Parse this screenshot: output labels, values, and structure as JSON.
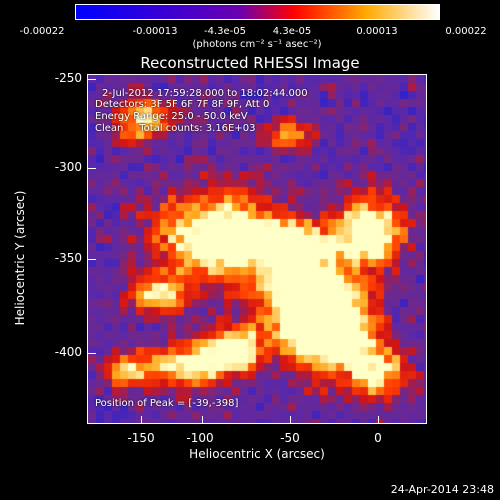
{
  "colorbar": {
    "ticks": [
      "-0.00022",
      "-0.00013",
      "-4.3e-05",
      "4.3e-05",
      "0.00013",
      "0.00022"
    ],
    "units": "(photons cm⁻² s⁻¹ asec⁻²)"
  },
  "title": "Reconstructed RHESSI Image",
  "info": {
    "line1": "2-Jul-2012 17:59:28.000 to 18:02:44.000",
    "line2": "Detectors: 3F 5F 6F 7F 8F 9F, Att 0",
    "line3": "Energy Range: 25.0 - 50.0 keV",
    "line4": "Clean     Total counts: 3.16E+03"
  },
  "peak": "Position of Peak = [-39,-398]",
  "axes": {
    "xlabel": "Heliocentric X (arcsec)",
    "ylabel": "Heliocentric Y (arcsec)",
    "xticks": [
      "-150",
      "-100",
      "-50",
      "0"
    ],
    "yticks": [
      "-250",
      "-300",
      "-350",
      "-400"
    ],
    "xrange": [
      -168,
      22
    ],
    "yrange": [
      -248,
      -443
    ]
  },
  "timestamp": "24-Apr-2014 23:48",
  "colors": {
    "low": "#1020ff",
    "mid": "#7a28a8",
    "high": "#ff2000",
    "peak": "#ffffc0"
  }
}
